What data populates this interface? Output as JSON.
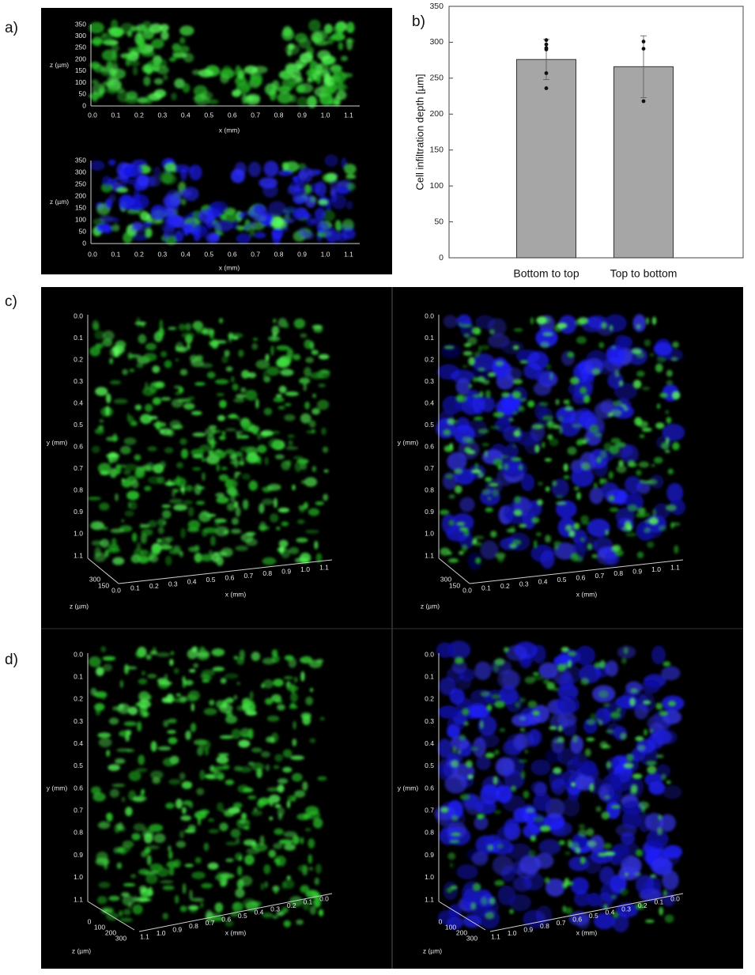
{
  "panel_a": {
    "label": "a)",
    "plots": [
      {
        "z_label": "z (µm)",
        "z_ticks": [
          "0",
          "50",
          "100",
          "150",
          "200",
          "250",
          "300",
          "350"
        ],
        "x_label": "x (mm)",
        "x_ticks": [
          "0.0",
          "0.1",
          "0.2",
          "0.3",
          "0.4",
          "0.5",
          "0.6",
          "0.7",
          "0.8",
          "0.9",
          "1.0",
          "1.1"
        ]
      },
      {
        "z_label": "z (µm)",
        "z_ticks": [
          "0",
          "50",
          "100",
          "150",
          "200",
          "250",
          "300",
          "350"
        ],
        "x_label": "x (mm)",
        "x_ticks": [
          "0.0",
          "0.1",
          "0.2",
          "0.3",
          "0.4",
          "0.5",
          "0.6",
          "0.7",
          "0.8",
          "0.9",
          "1.0",
          "1.1"
        ]
      }
    ]
  },
  "panel_b": {
    "label": "b)"
  },
  "chart_data": {
    "type": "bar",
    "categories": [
      "Bottom to top",
      "Top to bottom"
    ],
    "values": [
      276,
      266
    ],
    "errors": [
      28,
      43
    ],
    "points": [
      [
        303,
        297,
        292,
        290,
        257,
        236
      ],
      [
        301,
        291,
        218
      ]
    ],
    "color": "#a6a6a6",
    "y_label": "Cell infiltration depth [µm]",
    "ylim": [
      0,
      350
    ],
    "yticks": [
      0,
      50,
      100,
      150,
      200,
      250,
      300,
      350
    ]
  },
  "panel_c": {
    "label": "c)",
    "views": [
      {
        "y_label": "y (mm)",
        "y_ticks": [
          "0.0",
          "0.1",
          "0.2",
          "0.3",
          "0.4",
          "0.5",
          "0.6",
          "0.7",
          "0.8",
          "0.9",
          "1.0",
          "1.1"
        ],
        "x_label": "x (mm)",
        "x_ticks": [
          "0.0",
          "0.1",
          "0.2",
          "0.3",
          "0.4",
          "0.5",
          "0.6",
          "0.7",
          "0.8",
          "0.9",
          "1.0",
          "1.1"
        ],
        "z_label": "z (µm)",
        "z_ticks": [
          "300",
          "150"
        ]
      },
      {
        "y_label": "y (mm)",
        "y_ticks": [
          "0.0",
          "0.1",
          "0.2",
          "0.3",
          "0.4",
          "0.5",
          "0.6",
          "0.7",
          "0.8",
          "0.9",
          "1.0",
          "1.1"
        ],
        "x_label": "x (mm)",
        "x_ticks": [
          "0.0",
          "0.1",
          "0.2",
          "0.3",
          "0.4",
          "0.5",
          "0.6",
          "0.7",
          "0.8",
          "0.9",
          "1.0",
          "1.1"
        ],
        "z_label": "z (µm)",
        "z_ticks": [
          "300",
          "150"
        ]
      }
    ]
  },
  "panel_d": {
    "label": "d)",
    "views": [
      {
        "y_label": "y (mm)",
        "y_ticks": [
          "0.0",
          "0.1",
          "0.2",
          "0.3",
          "0.4",
          "0.5",
          "0.6",
          "0.7",
          "0.8",
          "0.9",
          "1.0",
          "1.1"
        ],
        "x_label": "x (mm)",
        "x_ticks": [
          "1.1",
          "1.0",
          "0.9",
          "0.8",
          "0.7",
          "0.6",
          "0.5",
          "0.4",
          "0.3",
          "0.2",
          "0.1",
          "0.0"
        ],
        "z_label": "z (µm)",
        "z_ticks": [
          "0",
          "100",
          "200",
          "300"
        ]
      },
      {
        "y_label": "y (mm)",
        "y_ticks": [
          "0.0",
          "0.1",
          "0.2",
          "0.3",
          "0.4",
          "0.5",
          "0.6",
          "0.7",
          "0.8",
          "0.9",
          "1.0",
          "1.1"
        ],
        "x_label": "x (mm)",
        "x_ticks": [
          "1.1",
          "1.0",
          "0.9",
          "0.8",
          "0.7",
          "0.6",
          "0.5",
          "0.4",
          "0.3",
          "0.2",
          "0.1",
          "0.0"
        ],
        "z_label": "z (µm)",
        "z_ticks": [
          "0",
          "100",
          "200",
          "300"
        ]
      }
    ]
  }
}
